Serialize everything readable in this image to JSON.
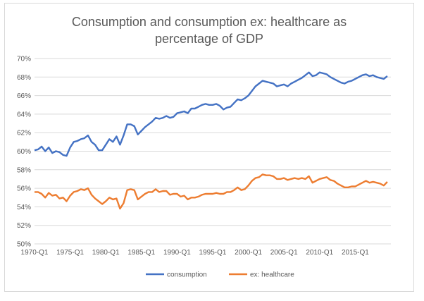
{
  "chart_data": {
    "type": "line",
    "title_line1": "Consumption and consumption ex: healthcare as",
    "title_line2": "percentage of GDP",
    "xlabel": "",
    "ylabel": "",
    "ylim": [
      50,
      70
    ],
    "y_ticks": [
      50,
      52,
      54,
      56,
      58,
      60,
      62,
      64,
      66,
      68,
      70
    ],
    "y_tick_labels": [
      "50%",
      "52%",
      "54%",
      "56%",
      "58%",
      "60%",
      "62%",
      "64%",
      "66%",
      "68%",
      "70%"
    ],
    "x_range": [
      1970.0,
      2020.0
    ],
    "x_ticks": [
      1970,
      1975,
      1980,
      1985,
      1990,
      1995,
      2000,
      2005,
      2010,
      2015
    ],
    "x_tick_labels": [
      "1970-Q1",
      "1975-Q1",
      "1980-Q1",
      "1985-Q1",
      "1990-Q1",
      "1995-Q1",
      "2000-Q1",
      "2005-Q1",
      "2010-Q1",
      "2015-Q1"
    ],
    "grid": true,
    "legend_position": "bottom",
    "series": [
      {
        "name": "consumption",
        "color": "#4472c4",
        "points": [
          [
            1970.0,
            60.1
          ],
          [
            1970.5,
            60.2
          ],
          [
            1971.0,
            60.5
          ],
          [
            1971.5,
            60.0
          ],
          [
            1972.0,
            60.4
          ],
          [
            1972.5,
            59.8
          ],
          [
            1973.0,
            60.0
          ],
          [
            1973.5,
            59.9
          ],
          [
            1974.0,
            59.6
          ],
          [
            1974.5,
            59.5
          ],
          [
            1975.0,
            60.4
          ],
          [
            1975.5,
            61.0
          ],
          [
            1976.0,
            61.1
          ],
          [
            1976.5,
            61.3
          ],
          [
            1977.0,
            61.4
          ],
          [
            1977.5,
            61.7
          ],
          [
            1978.0,
            61.0
          ],
          [
            1978.5,
            60.7
          ],
          [
            1979.0,
            60.1
          ],
          [
            1979.5,
            60.1
          ],
          [
            1980.0,
            60.7
          ],
          [
            1980.5,
            61.3
          ],
          [
            1981.0,
            61.0
          ],
          [
            1981.5,
            61.6
          ],
          [
            1982.0,
            60.7
          ],
          [
            1982.5,
            61.7
          ],
          [
            1983.0,
            62.9
          ],
          [
            1983.5,
            62.9
          ],
          [
            1984.0,
            62.7
          ],
          [
            1984.5,
            61.8
          ],
          [
            1985.0,
            62.2
          ],
          [
            1985.5,
            62.6
          ],
          [
            1986.0,
            62.9
          ],
          [
            1986.5,
            63.2
          ],
          [
            1987.0,
            63.6
          ],
          [
            1987.5,
            63.5
          ],
          [
            1988.0,
            63.6
          ],
          [
            1988.5,
            63.8
          ],
          [
            1989.0,
            63.6
          ],
          [
            1989.5,
            63.7
          ],
          [
            1990.0,
            64.1
          ],
          [
            1990.5,
            64.2
          ],
          [
            1991.0,
            64.3
          ],
          [
            1991.5,
            64.1
          ],
          [
            1992.0,
            64.6
          ],
          [
            1992.5,
            64.6
          ],
          [
            1993.0,
            64.8
          ],
          [
            1993.5,
            65.0
          ],
          [
            1994.0,
            65.1
          ],
          [
            1994.5,
            65.0
          ],
          [
            1995.0,
            65.0
          ],
          [
            1995.5,
            65.1
          ],
          [
            1996.0,
            64.9
          ],
          [
            1996.5,
            64.5
          ],
          [
            1997.0,
            64.7
          ],
          [
            1997.5,
            64.8
          ],
          [
            1998.0,
            65.2
          ],
          [
            1998.5,
            65.6
          ],
          [
            1999.0,
            65.5
          ],
          [
            1999.5,
            65.7
          ],
          [
            2000.0,
            66.0
          ],
          [
            2000.5,
            66.5
          ],
          [
            2001.0,
            67.0
          ],
          [
            2001.5,
            67.3
          ],
          [
            2002.0,
            67.6
          ],
          [
            2002.5,
            67.5
          ],
          [
            2003.0,
            67.4
          ],
          [
            2003.5,
            67.3
          ],
          [
            2004.0,
            67.0
          ],
          [
            2004.5,
            67.1
          ],
          [
            2005.0,
            67.2
          ],
          [
            2005.5,
            67.0
          ],
          [
            2006.0,
            67.3
          ],
          [
            2006.5,
            67.5
          ],
          [
            2007.0,
            67.7
          ],
          [
            2007.5,
            67.9
          ],
          [
            2008.0,
            68.2
          ],
          [
            2008.5,
            68.5
          ],
          [
            2009.0,
            68.1
          ],
          [
            2009.5,
            68.2
          ],
          [
            2010.0,
            68.5
          ],
          [
            2010.5,
            68.4
          ],
          [
            2011.0,
            68.3
          ],
          [
            2011.5,
            68.0
          ],
          [
            2012.0,
            67.8
          ],
          [
            2012.5,
            67.6
          ],
          [
            2013.0,
            67.4
          ],
          [
            2013.5,
            67.3
          ],
          [
            2014.0,
            67.5
          ],
          [
            2014.5,
            67.6
          ],
          [
            2015.0,
            67.8
          ],
          [
            2015.5,
            68.0
          ],
          [
            2016.0,
            68.2
          ],
          [
            2016.5,
            68.3
          ],
          [
            2017.0,
            68.1
          ],
          [
            2017.5,
            68.2
          ],
          [
            2018.0,
            68.0
          ],
          [
            2018.5,
            67.9
          ],
          [
            2019.0,
            67.8
          ],
          [
            2019.5,
            68.1
          ]
        ]
      },
      {
        "name": "ex: healthcare",
        "color": "#ed7d31",
        "points": [
          [
            1970.0,
            55.6
          ],
          [
            1970.5,
            55.6
          ],
          [
            1971.0,
            55.4
          ],
          [
            1971.5,
            55.0
          ],
          [
            1972.0,
            55.5
          ],
          [
            1972.5,
            55.2
          ],
          [
            1973.0,
            55.3
          ],
          [
            1973.5,
            54.9
          ],
          [
            1974.0,
            55.0
          ],
          [
            1974.5,
            54.6
          ],
          [
            1975.0,
            55.2
          ],
          [
            1975.5,
            55.6
          ],
          [
            1976.0,
            55.7
          ],
          [
            1976.5,
            55.9
          ],
          [
            1977.0,
            55.8
          ],
          [
            1977.5,
            56.0
          ],
          [
            1978.0,
            55.3
          ],
          [
            1978.5,
            54.9
          ],
          [
            1979.0,
            54.6
          ],
          [
            1979.5,
            54.3
          ],
          [
            1980.0,
            54.6
          ],
          [
            1980.5,
            55.0
          ],
          [
            1981.0,
            54.8
          ],
          [
            1981.5,
            54.9
          ],
          [
            1982.0,
            53.8
          ],
          [
            1982.5,
            54.4
          ],
          [
            1983.0,
            55.8
          ],
          [
            1983.5,
            55.9
          ],
          [
            1984.0,
            55.8
          ],
          [
            1984.5,
            54.8
          ],
          [
            1985.0,
            55.1
          ],
          [
            1985.5,
            55.4
          ],
          [
            1986.0,
            55.6
          ],
          [
            1986.5,
            55.6
          ],
          [
            1987.0,
            55.9
          ],
          [
            1987.5,
            55.6
          ],
          [
            1988.0,
            55.7
          ],
          [
            1988.5,
            55.7
          ],
          [
            1989.0,
            55.3
          ],
          [
            1989.5,
            55.4
          ],
          [
            1990.0,
            55.4
          ],
          [
            1990.5,
            55.1
          ],
          [
            1991.0,
            55.2
          ],
          [
            1991.5,
            54.8
          ],
          [
            1992.0,
            55.0
          ],
          [
            1992.5,
            55.0
          ],
          [
            1993.0,
            55.1
          ],
          [
            1993.5,
            55.3
          ],
          [
            1994.0,
            55.4
          ],
          [
            1994.5,
            55.4
          ],
          [
            1995.0,
            55.4
          ],
          [
            1995.5,
            55.5
          ],
          [
            1996.0,
            55.4
          ],
          [
            1996.5,
            55.4
          ],
          [
            1997.0,
            55.6
          ],
          [
            1997.5,
            55.6
          ],
          [
            1998.0,
            55.8
          ],
          [
            1998.5,
            56.1
          ],
          [
            1999.0,
            55.8
          ],
          [
            1999.5,
            55.9
          ],
          [
            2000.0,
            56.3
          ],
          [
            2000.5,
            56.8
          ],
          [
            2001.0,
            57.1
          ],
          [
            2001.5,
            57.2
          ],
          [
            2002.0,
            57.5
          ],
          [
            2002.5,
            57.4
          ],
          [
            2003.0,
            57.4
          ],
          [
            2003.5,
            57.3
          ],
          [
            2004.0,
            57.0
          ],
          [
            2004.5,
            57.0
          ],
          [
            2005.0,
            57.1
          ],
          [
            2005.5,
            56.9
          ],
          [
            2006.0,
            57.0
          ],
          [
            2006.5,
            57.1
          ],
          [
            2007.0,
            57.0
          ],
          [
            2007.5,
            57.1
          ],
          [
            2008.0,
            57.0
          ],
          [
            2008.5,
            57.3
          ],
          [
            2009.0,
            56.6
          ],
          [
            2009.5,
            56.8
          ],
          [
            2010.0,
            57.0
          ],
          [
            2010.5,
            57.1
          ],
          [
            2011.0,
            57.2
          ],
          [
            2011.5,
            56.9
          ],
          [
            2012.0,
            56.8
          ],
          [
            2012.5,
            56.5
          ],
          [
            2013.0,
            56.3
          ],
          [
            2013.5,
            56.1
          ],
          [
            2014.0,
            56.1
          ],
          [
            2014.5,
            56.2
          ],
          [
            2015.0,
            56.2
          ],
          [
            2015.5,
            56.4
          ],
          [
            2016.0,
            56.6
          ],
          [
            2016.5,
            56.8
          ],
          [
            2017.0,
            56.6
          ],
          [
            2017.5,
            56.7
          ],
          [
            2018.0,
            56.6
          ],
          [
            2018.5,
            56.5
          ],
          [
            2019.0,
            56.3
          ],
          [
            2019.5,
            56.7
          ]
        ]
      }
    ]
  }
}
